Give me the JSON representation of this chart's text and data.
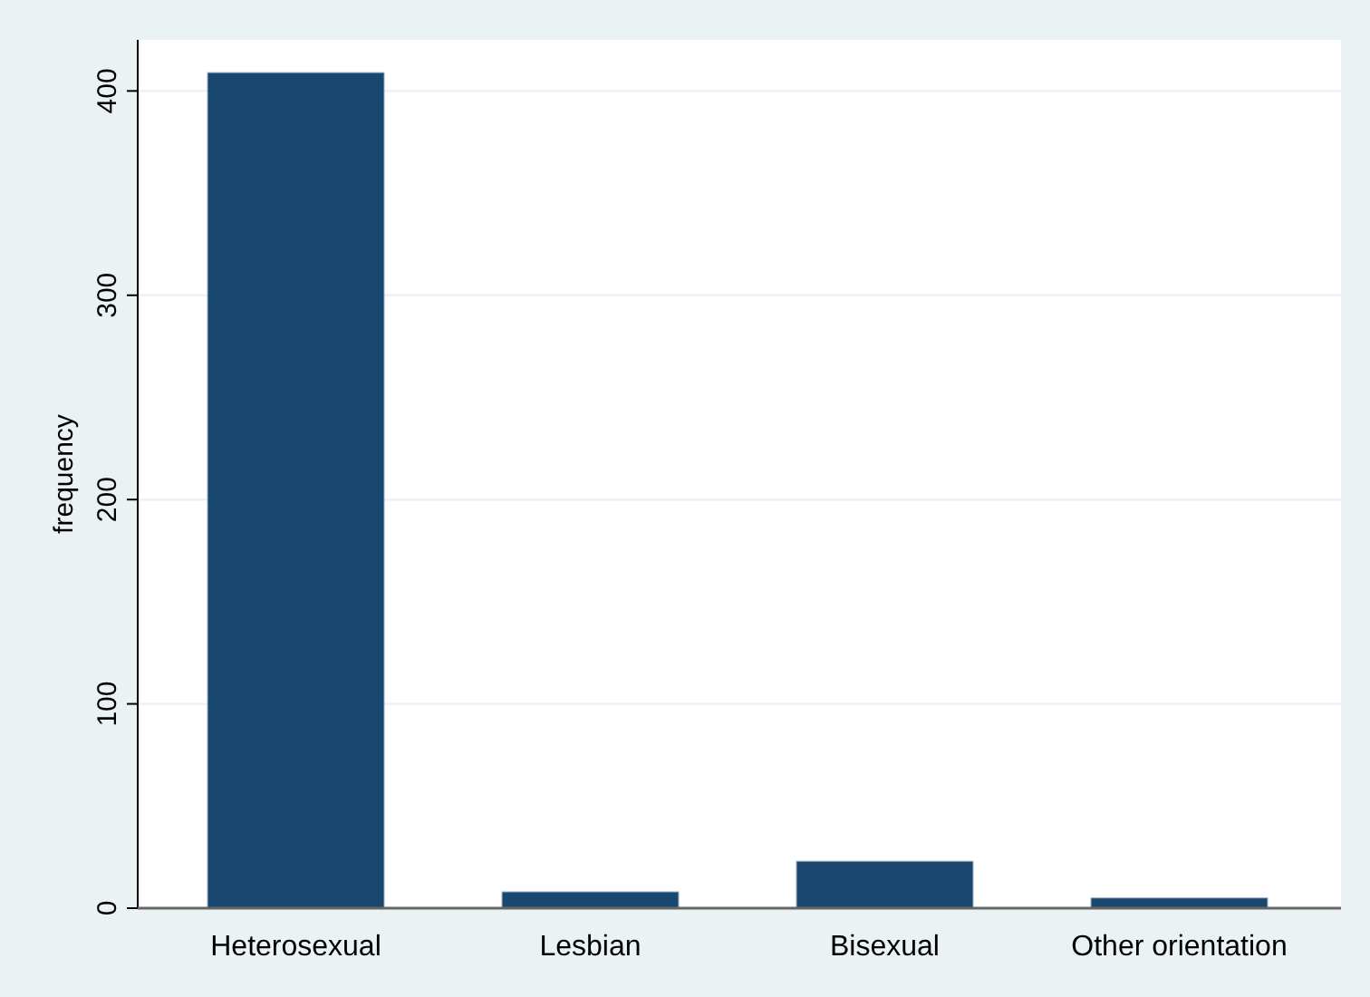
{
  "chart_data": {
    "type": "bar",
    "ylabel": "frequency",
    "categories": [
      "Heterosexual",
      "Lesbian",
      "Bisexual",
      "Other orientation"
    ],
    "values": [
      409,
      8,
      23,
      5
    ],
    "color": "#1a476f",
    "ylim": [
      0,
      425
    ],
    "yticks": [
      0,
      100,
      200,
      300,
      400
    ],
    "grid": "y"
  }
}
